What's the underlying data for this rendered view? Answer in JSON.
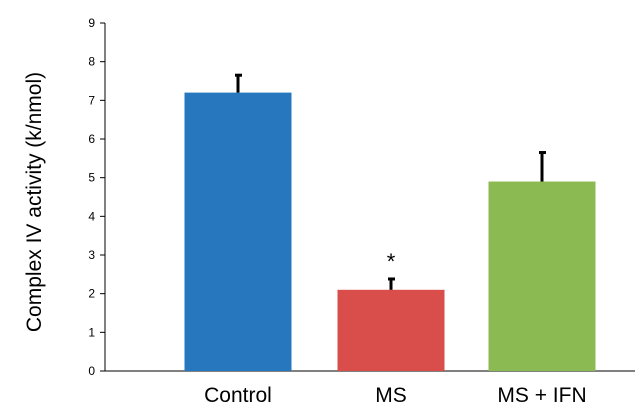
{
  "chart_data": {
    "type": "bar",
    "title": "",
    "xlabel": "",
    "ylabel": "Complex IV activity  (k/nmol)",
    "ylim": [
      0,
      9
    ],
    "yticks": [
      0,
      1,
      2,
      3,
      4,
      5,
      6,
      7,
      8,
      9
    ],
    "categories": [
      "Control",
      "MS",
      "MS + IFN"
    ],
    "values": [
      7.2,
      2.1,
      4.9
    ],
    "errors": [
      0.45,
      0.28,
      0.75
    ],
    "colors": [
      "#2677bd",
      "#d94d4a",
      "#8cba52"
    ],
    "annotations": [
      "",
      "*",
      ""
    ],
    "grid": false,
    "legend": "none"
  }
}
